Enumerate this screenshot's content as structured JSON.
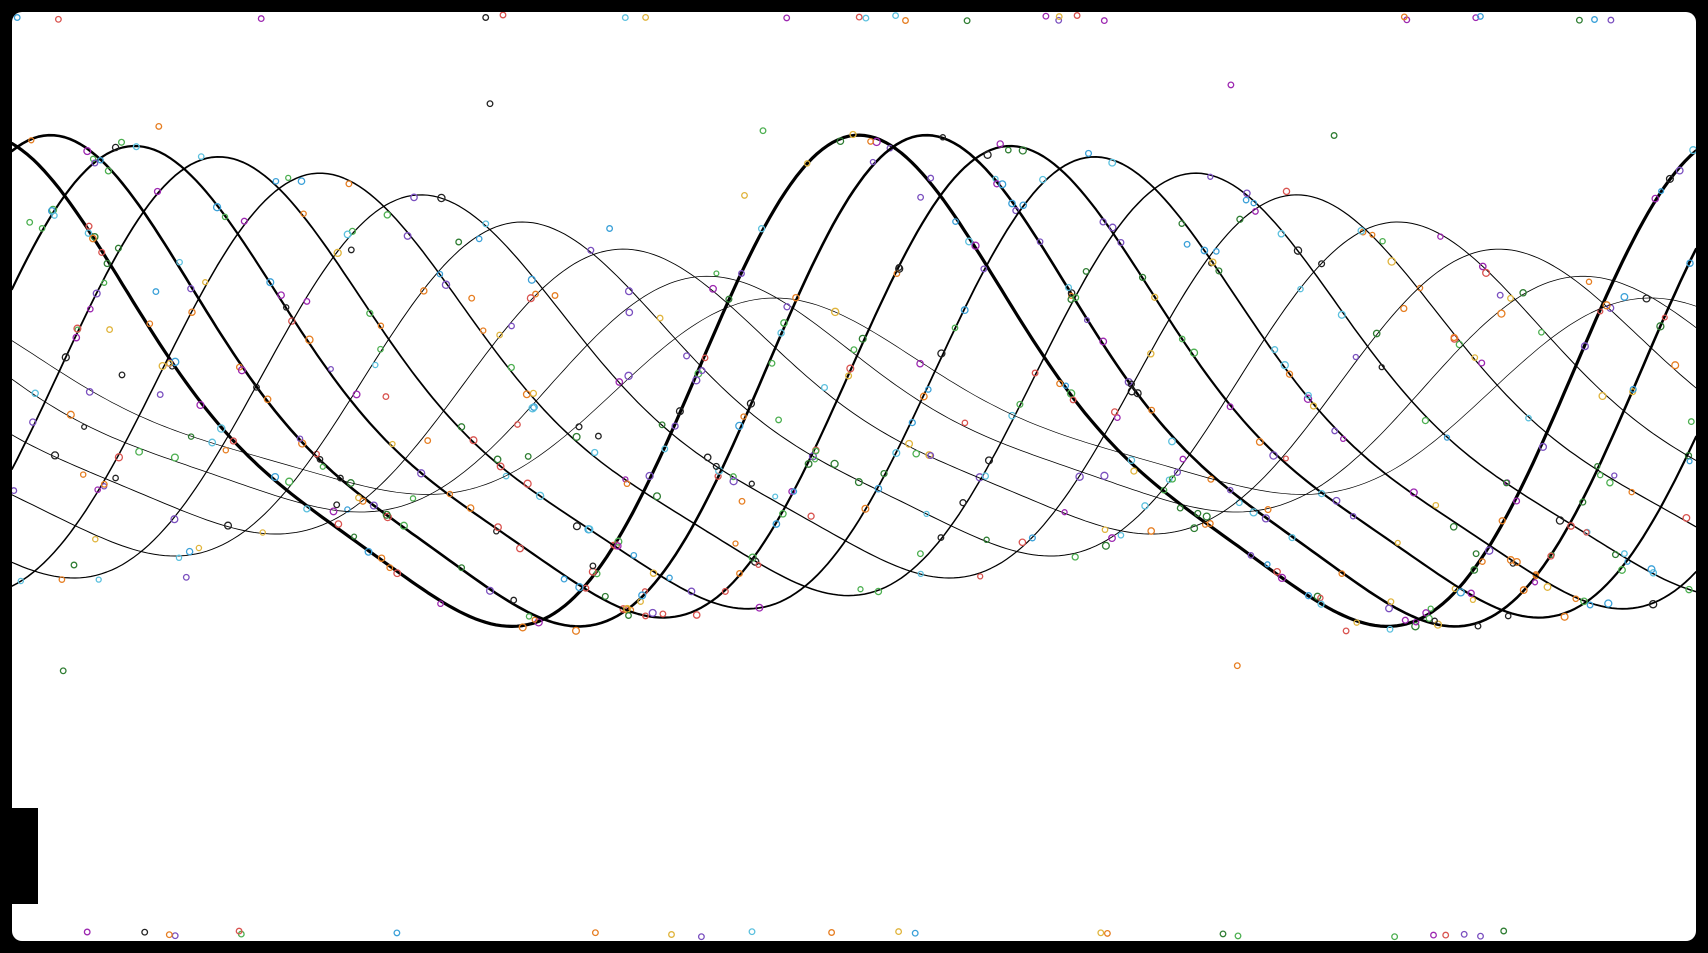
{
  "chart_data": {
    "type": "line",
    "title": "",
    "xlabel": "",
    "ylabel": "",
    "grid": false,
    "legend": "none",
    "x_range": [
      0,
      1
    ],
    "y_range": [
      -1.15,
      1.15
    ],
    "samples": 320,
    "stroke_color": "#000000",
    "marker_colors": [
      "#7a4fbf",
      "#3aa0d8",
      "#4caf50",
      "#e0b43c",
      "#d9534f",
      "#5bc0de",
      "#9c27b0",
      "#2e7d32",
      "#222222",
      "#e67e22"
    ],
    "series": [
      {
        "amplitude": 1.0,
        "phase": 0.0,
        "wavelength": 0.52,
        "weight": 3.2,
        "markers": 90
      },
      {
        "amplitude": 1.0,
        "phase": 0.04,
        "wavelength": 0.52,
        "weight": 2.6,
        "markers": 80
      },
      {
        "amplitude": 0.96,
        "phase": 0.09,
        "wavelength": 0.52,
        "weight": 2.2,
        "markers": 75
      },
      {
        "amplitude": 0.92,
        "phase": 0.14,
        "wavelength": 0.52,
        "weight": 1.8,
        "markers": 70
      },
      {
        "amplitude": 0.86,
        "phase": 0.2,
        "wavelength": 0.52,
        "weight": 1.5,
        "markers": 60
      },
      {
        "amplitude": 0.78,
        "phase": 0.26,
        "wavelength": 0.52,
        "weight": 1.2,
        "markers": 50
      },
      {
        "amplitude": 0.68,
        "phase": 0.32,
        "wavelength": 0.52,
        "weight": 1.0,
        "markers": 40
      },
      {
        "amplitude": 0.58,
        "phase": 0.38,
        "wavelength": 0.52,
        "weight": 0.9,
        "markers": 30
      },
      {
        "amplitude": 0.48,
        "phase": 0.43,
        "wavelength": 0.52,
        "weight": 0.8,
        "markers": 20
      },
      {
        "amplitude": 0.4,
        "phase": 0.47,
        "wavelength": 0.52,
        "weight": 0.7,
        "markers": 14
      }
    ]
  }
}
